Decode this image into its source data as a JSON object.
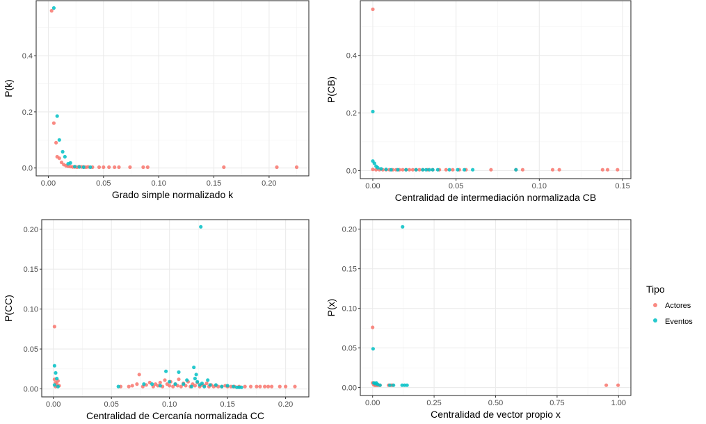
{
  "legend": {
    "title": "Tipo",
    "items": [
      {
        "label": "Actores",
        "color": "#F8766D"
      },
      {
        "label": "Eventos",
        "color": "#00BFC4"
      }
    ]
  },
  "chart_data": [
    {
      "type": "scatter",
      "xlabel": "Grado simple normalizado k",
      "ylabel": "P(k)",
      "xlim": [
        -0.011,
        0.236
      ],
      "ylim": [
        -0.028,
        0.596
      ],
      "x_ticks": [
        0,
        0.05,
        0.1,
        0.15,
        0.2
      ],
      "x_tick_labels": [
        "0.00",
        "0.05",
        "0.10",
        "0.15",
        "0.20"
      ],
      "y_ticks": [
        0,
        0.2,
        0.4
      ],
      "y_tick_labels": [
        "0.0",
        "0.2",
        "0.4"
      ],
      "grid": true,
      "series": [
        {
          "name": "Actores",
          "points": [
            [
              0.003,
              0.56
            ],
            [
              0.005,
              0.16
            ],
            [
              0.007,
              0.09
            ],
            [
              0.008,
              0.04
            ],
            [
              0.01,
              0.035
            ],
            [
              0.012,
              0.02
            ],
            [
              0.014,
              0.012
            ],
            [
              0.016,
              0.008
            ],
            [
              0.018,
              0.006
            ],
            [
              0.02,
              0.005
            ],
            [
              0.022,
              0.004
            ],
            [
              0.024,
              0.004
            ],
            [
              0.026,
              0.003
            ],
            [
              0.028,
              0.005
            ],
            [
              0.03,
              0.004
            ],
            [
              0.032,
              0.004
            ],
            [
              0.034,
              0.003
            ],
            [
              0.036,
              0.004
            ],
            [
              0.04,
              0.003
            ],
            [
              0.046,
              0.003
            ],
            [
              0.05,
              0.003
            ],
            [
              0.055,
              0.003
            ],
            [
              0.06,
              0.003
            ],
            [
              0.064,
              0.003
            ],
            [
              0.074,
              0.003
            ],
            [
              0.086,
              0.003
            ],
            [
              0.09,
              0.003
            ],
            [
              0.159,
              0.003
            ],
            [
              0.207,
              0.003
            ],
            [
              0.225,
              0.003
            ]
          ]
        },
        {
          "name": "Eventos",
          "points": [
            [
              0.005,
              0.57
            ],
            [
              0.008,
              0.185
            ],
            [
              0.01,
              0.1
            ],
            [
              0.013,
              0.058
            ],
            [
              0.015,
              0.04
            ],
            [
              0.018,
              0.015
            ],
            [
              0.02,
              0.018
            ],
            [
              0.024,
              0.005
            ],
            [
              0.028,
              0.004
            ],
            [
              0.032,
              0.003
            ],
            [
              0.038,
              0.003
            ]
          ]
        }
      ]
    },
    {
      "type": "scatter",
      "xlabel": "Centralidad de intermediación normalizada CB",
      "ylabel": "P(CB)",
      "xlim": [
        -0.0075,
        0.155
      ],
      "ylim": [
        -0.028,
        0.59
      ],
      "x_ticks": [
        0,
        0.05,
        0.1,
        0.15
      ],
      "x_tick_labels": [
        "0.00",
        "0.05",
        "0.10",
        "0.15"
      ],
      "y_ticks": [
        0,
        0.2,
        0.4
      ],
      "y_tick_labels": [
        "0.0",
        "0.2",
        "0.4"
      ],
      "grid": true,
      "series": [
        {
          "name": "Actores",
          "points": [
            [
              0,
              0.56
            ],
            [
              0,
              0.004
            ],
            [
              0.002,
              0.003
            ],
            [
              0.004,
              0.003
            ],
            [
              0.006,
              0.003
            ],
            [
              0.008,
              0.003
            ],
            [
              0.01,
              0.003
            ],
            [
              0.012,
              0.003
            ],
            [
              0.014,
              0.003
            ],
            [
              0.016,
              0.003
            ],
            [
              0.018,
              0.003
            ],
            [
              0.02,
              0.003
            ],
            [
              0.022,
              0.003
            ],
            [
              0.024,
              0.003
            ],
            [
              0.026,
              0.003
            ],
            [
              0.028,
              0.003
            ],
            [
              0.03,
              0.003
            ],
            [
              0.033,
              0.003
            ],
            [
              0.036,
              0.003
            ],
            [
              0.04,
              0.003
            ],
            [
              0.044,
              0.003
            ],
            [
              0.048,
              0.003
            ],
            [
              0.052,
              0.003
            ],
            [
              0.056,
              0.003
            ],
            [
              0.071,
              0.003
            ],
            [
              0.086,
              0.003
            ],
            [
              0.09,
              0.003
            ],
            [
              0.108,
              0.003
            ],
            [
              0.112,
              0.003
            ],
            [
              0.138,
              0.003
            ],
            [
              0.141,
              0.003
            ],
            [
              0.147,
              0.003
            ]
          ]
        },
        {
          "name": "Eventos",
          "points": [
            [
              0,
              0.205
            ],
            [
              0,
              0.033
            ],
            [
              0.001,
              0.025
            ],
            [
              0.002,
              0.015
            ],
            [
              0.003,
              0.01
            ],
            [
              0.005,
              0.006
            ],
            [
              0.008,
              0.004
            ],
            [
              0.011,
              0.003
            ],
            [
              0.015,
              0.003
            ],
            [
              0.02,
              0.003
            ],
            [
              0.026,
              0.003
            ],
            [
              0.03,
              0.003
            ],
            [
              0.032,
              0.003
            ],
            [
              0.034,
              0.003
            ],
            [
              0.036,
              0.003
            ],
            [
              0.039,
              0.003
            ],
            [
              0.046,
              0.003
            ],
            [
              0.051,
              0.003
            ],
            [
              0.055,
              0.003
            ],
            [
              0.06,
              0.003
            ],
            [
              0.086,
              0.003
            ]
          ]
        }
      ]
    },
    {
      "type": "scatter",
      "xlabel": "Centralidad de Cercanía normalizada CC",
      "ylabel": "P(CC)",
      "xlim": [
        -0.01,
        0.22
      ],
      "ylim": [
        -0.01,
        0.212
      ],
      "x_ticks": [
        0,
        0.05,
        0.1,
        0.15,
        0.2
      ],
      "x_tick_labels": [
        "0.00",
        "0.05",
        "0.10",
        "0.15",
        "0.20"
      ],
      "y_ticks": [
        0,
        0.05,
        0.1,
        0.15,
        0.2
      ],
      "y_tick_labels": [
        "0.00",
        "0.05",
        "0.10",
        "0.15",
        "0.20"
      ],
      "grid": true,
      "series": [
        {
          "name": "Actores",
          "points": [
            [
              0.001,
              0.078
            ],
            [
              0.001,
              0.012
            ],
            [
              0.002,
              0.008
            ],
            [
              0.003,
              0.006
            ],
            [
              0.004,
              0.01
            ],
            [
              0.005,
              0.004
            ],
            [
              0.002,
              0.003
            ],
            [
              0.058,
              0.003
            ],
            [
              0.065,
              0.003
            ],
            [
              0.068,
              0.004
            ],
            [
              0.072,
              0.006
            ],
            [
              0.074,
              0.018
            ],
            [
              0.077,
              0.003
            ],
            [
              0.08,
              0.005
            ],
            [
              0.083,
              0.008
            ],
            [
              0.086,
              0.003
            ],
            [
              0.088,
              0.006
            ],
            [
              0.09,
              0.004
            ],
            [
              0.092,
              0.008
            ],
            [
              0.094,
              0.003
            ],
            [
              0.096,
              0.011
            ],
            [
              0.098,
              0.006
            ],
            [
              0.1,
              0.004
            ],
            [
              0.101,
              0.009
            ],
            [
              0.103,
              0.003
            ],
            [
              0.105,
              0.006
            ],
            [
              0.107,
              0.004
            ],
            [
              0.108,
              0.012
            ],
            [
              0.11,
              0.003
            ],
            [
              0.112,
              0.007
            ],
            [
              0.114,
              0.004
            ],
            [
              0.116,
              0.009
            ],
            [
              0.118,
              0.003
            ],
            [
              0.12,
              0.006
            ],
            [
              0.122,
              0.004
            ],
            [
              0.124,
              0.008
            ],
            [
              0.126,
              0.003
            ],
            [
              0.128,
              0.005
            ],
            [
              0.13,
              0.004
            ],
            [
              0.132,
              0.007
            ],
            [
              0.134,
              0.003
            ],
            [
              0.136,
              0.005
            ],
            [
              0.138,
              0.003
            ],
            [
              0.14,
              0.004
            ],
            [
              0.142,
              0.003
            ],
            [
              0.145,
              0.003
            ],
            [
              0.148,
              0.004
            ],
            [
              0.15,
              0.003
            ],
            [
              0.153,
              0.003
            ],
            [
              0.156,
              0.003
            ],
            [
              0.16,
              0.003
            ],
            [
              0.165,
              0.003
            ],
            [
              0.17,
              0.003
            ],
            [
              0.175,
              0.003
            ],
            [
              0.178,
              0.003
            ],
            [
              0.182,
              0.003
            ],
            [
              0.185,
              0.003
            ],
            [
              0.188,
              0.003
            ],
            [
              0.195,
              0.003
            ],
            [
              0.2,
              0.003
            ],
            [
              0.208,
              0.003
            ]
          ]
        },
        {
          "name": "Eventos",
          "points": [
            [
              0.127,
              0.203
            ],
            [
              0.001,
              0.029
            ],
            [
              0.002,
              0.02
            ],
            [
              0.003,
              0.013
            ],
            [
              0.001,
              0.005
            ],
            [
              0.004,
              0.003
            ],
            [
              0.056,
              0.003
            ],
            [
              0.078,
              0.006
            ],
            [
              0.085,
              0.006
            ],
            [
              0.092,
              0.004
            ],
            [
              0.097,
              0.022
            ],
            [
              0.1,
              0.009
            ],
            [
              0.105,
              0.006
            ],
            [
              0.108,
              0.021
            ],
            [
              0.112,
              0.006
            ],
            [
              0.115,
              0.011
            ],
            [
              0.119,
              0.003
            ],
            [
              0.121,
              0.027
            ],
            [
              0.122,
              0.013
            ],
            [
              0.123,
              0.018
            ],
            [
              0.124,
              0.009
            ],
            [
              0.126,
              0.005
            ],
            [
              0.128,
              0.007
            ],
            [
              0.13,
              0.003
            ],
            [
              0.133,
              0.011
            ],
            [
              0.135,
              0.005
            ],
            [
              0.14,
              0.005
            ],
            [
              0.145,
              0.003
            ],
            [
              0.15,
              0.004
            ],
            [
              0.155,
              0.003
            ],
            [
              0.158,
              0.002
            ],
            [
              0.16,
              0.002
            ],
            [
              0.162,
              0.002
            ]
          ]
        }
      ]
    },
    {
      "type": "scatter",
      "xlabel": "Centralidad de vector propio x",
      "ylabel": "P(x)",
      "xlim": [
        -0.05,
        1.05
      ],
      "ylim": [
        -0.01,
        0.212
      ],
      "x_ticks": [
        0,
        0.25,
        0.5,
        0.75,
        1
      ],
      "x_tick_labels": [
        "0.00",
        "0.25",
        "0.50",
        "0.75",
        "1.00"
      ],
      "y_ticks": [
        0,
        0.05,
        0.1,
        0.15,
        0.2
      ],
      "y_tick_labels": [
        "0.00",
        "0.05",
        "0.10",
        "0.15",
        "0.20"
      ],
      "grid": true,
      "series": [
        {
          "name": "Actores",
          "points": [
            [
              0,
              0.076
            ],
            [
              0,
              0.006
            ],
            [
              0.004,
              0.004
            ],
            [
              0.008,
              0.003
            ],
            [
              0.012,
              0.003
            ],
            [
              0.016,
              0.003
            ],
            [
              0.02,
              0.003
            ],
            [
              0.024,
              0.003
            ],
            [
              0.03,
              0.003
            ],
            [
              0.065,
              0.003
            ],
            [
              0.075,
              0.003
            ],
            [
              0.08,
              0.003
            ],
            [
              0.95,
              0.003
            ],
            [
              0.998,
              0.003
            ]
          ]
        },
        {
          "name": "Eventos",
          "points": [
            [
              0.122,
              0.203
            ],
            [
              0.002,
              0.049
            ],
            [
              0.005,
              0.006
            ],
            [
              0.01,
              0.005
            ],
            [
              0.015,
              0.006
            ],
            [
              0.02,
              0.004
            ],
            [
              0.03,
              0.003
            ],
            [
              0.07,
              0.003
            ],
            [
              0.085,
              0.003
            ],
            [
              0.12,
              0.003
            ],
            [
              0.13,
              0.003
            ],
            [
              0.14,
              0.003
            ]
          ]
        }
      ]
    }
  ]
}
